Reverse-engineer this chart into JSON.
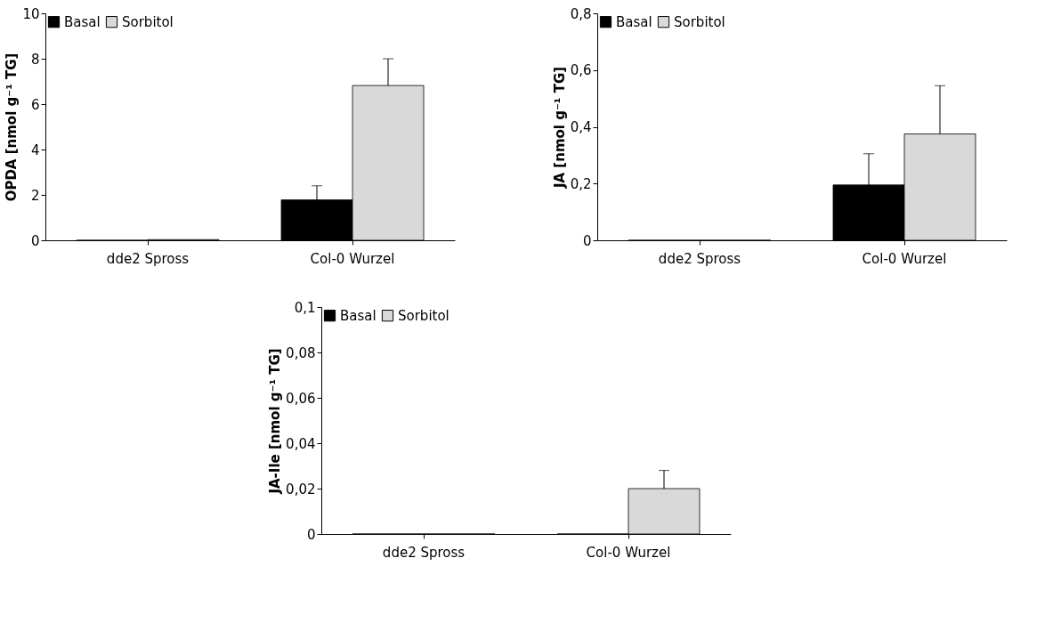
{
  "chart_data": [
    {
      "type": "bar",
      "ylabel": "OPDA [nmol g⁻¹ TG]",
      "categories": [
        "dde2 Spross",
        "Col-0 Wurzel"
      ],
      "ylim": [
        0,
        10
      ],
      "yticks": [
        0,
        2,
        4,
        6,
        8,
        10
      ],
      "grid": false,
      "legend": "top left",
      "series": [
        {
          "name": "Basal",
          "color": "#000000",
          "values": [
            0,
            1.78
          ],
          "errors": [
            null,
            [
              1.78,
              2.4
            ]
          ]
        },
        {
          "name": "Sorbitol",
          "color": "#d9d9d9",
          "values": [
            0.03,
            6.82
          ],
          "errors": [
            null,
            [
              6.82,
              8.0
            ]
          ]
        }
      ]
    },
    {
      "type": "bar",
      "ylabel": "JA [nmol g⁻¹ TG]",
      "categories": [
        "dde2 Spross",
        "Col-0 Wurzel"
      ],
      "ylim": [
        0,
        0.8
      ],
      "yticks": [
        0,
        {
          "value": 0.2,
          "label": "0,2"
        },
        {
          "value": 0.4,
          "label": "0,4"
        },
        {
          "value": 0.6,
          "label": "0,6"
        },
        {
          "value": 0.8,
          "label": "0,8"
        }
      ],
      "grid": false,
      "legend": "top left",
      "series": [
        {
          "name": "Basal",
          "color": "#000000",
          "values": [
            0,
            0.195
          ],
          "errors": [
            null,
            [
              0.195,
              0.305
            ]
          ]
        },
        {
          "name": "Sorbitol",
          "color": "#d9d9d9",
          "values": [
            0,
            0.375
          ],
          "errors": [
            null,
            [
              0.375,
              0.545
            ]
          ]
        }
      ]
    },
    {
      "type": "bar",
      "ylabel": "JA-Ile [nmol g⁻¹ TG]",
      "categories": [
        "dde2 Spross",
        "Col-0 Wurzel"
      ],
      "ylim": [
        0,
        0.1
      ],
      "yticks": [
        0,
        {
          "value": 0.02,
          "label": "0,02"
        },
        {
          "value": 0.04,
          "label": "0,04"
        },
        {
          "value": 0.06,
          "label": "0,06"
        },
        {
          "value": 0.08,
          "label": "0,08"
        },
        {
          "value": 0.1,
          "label": "0,1"
        }
      ],
      "grid": false,
      "legend": "top left",
      "series": [
        {
          "name": "Basal",
          "color": "#000000",
          "values": [
            0,
            0
          ]
        },
        {
          "name": "Sorbitol",
          "color": "#d9d9d9",
          "values": [
            0,
            0.02
          ],
          "errors": [
            null,
            [
              0.02,
              0.028
            ]
          ]
        }
      ]
    }
  ]
}
